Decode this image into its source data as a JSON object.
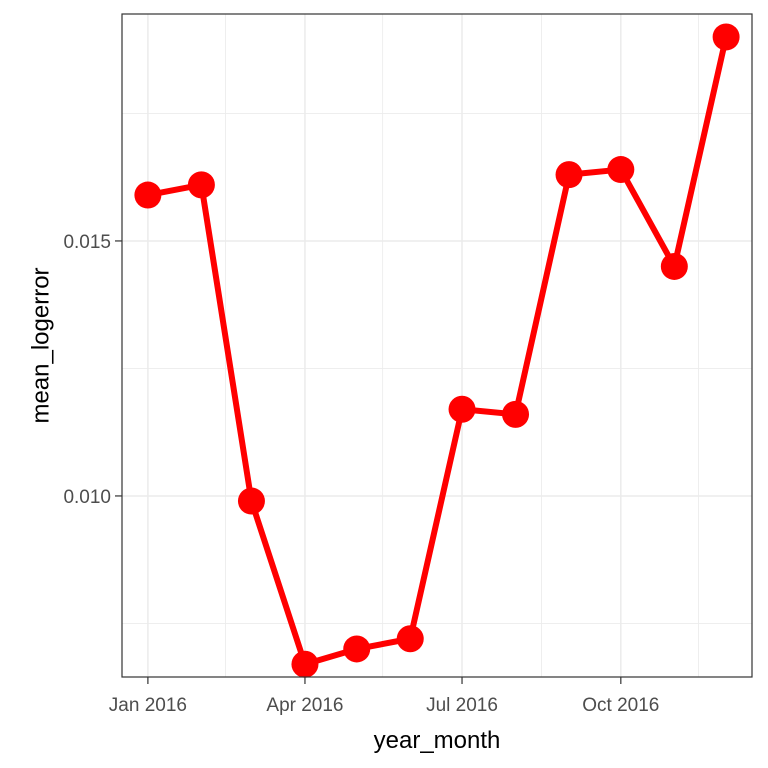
{
  "chart_data": {
    "type": "line",
    "xlabel": "year_month",
    "ylabel": "mean_logerror",
    "x_tick_labels": [
      "Jan 2016",
      "Apr 2016",
      "Jul 2016",
      "Oct 2016"
    ],
    "x_ticks": [
      "2016-01-01",
      "2016-04-01",
      "2016-07-01",
      "2016-10-01"
    ],
    "x_minor_ticks": [
      "2016-02-15",
      "2016-05-16",
      "2016-08-16",
      "2016-11-15"
    ],
    "y_tick_labels": [
      "0.010",
      "0.015"
    ],
    "y_ticks": [
      0.01,
      0.015
    ],
    "y_minor_ticks": [
      0.0075,
      0.0125,
      0.0175
    ],
    "xlim": [
      "2015-12-17",
      "2016-12-16"
    ],
    "ylim": [
      0.00645,
      0.01945
    ],
    "grid": true,
    "series": [
      {
        "x": [
          "2016-01-01",
          "2016-02-01",
          "2016-03-01",
          "2016-04-01",
          "2016-05-01",
          "2016-06-01",
          "2016-07-01",
          "2016-08-01",
          "2016-09-01",
          "2016-10-01",
          "2016-11-01",
          "2016-12-01"
        ],
        "values": [
          0.0159,
          0.0161,
          0.0099,
          0.0067,
          0.007,
          0.0072,
          0.0117,
          0.0116,
          0.0163,
          0.0164,
          0.0145,
          0.019
        ],
        "color": "#ff0000"
      }
    ]
  }
}
